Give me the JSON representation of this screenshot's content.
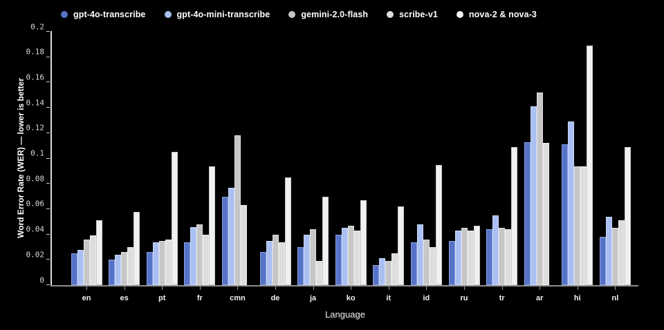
{
  "chart_data": {
    "type": "bar",
    "title": "",
    "xlabel": "Language",
    "ylabel": "Word Error Rate (WER) — lower is better",
    "ylim": [
      0,
      0.2
    ],
    "ytick_step": 0.02,
    "grid": false,
    "legend_position": "top",
    "background": "#000000",
    "categories": [
      "en",
      "es",
      "pt",
      "fr",
      "cmn",
      "de",
      "ja",
      "ko",
      "it",
      "id",
      "ru",
      "tr",
      "ar",
      "hi",
      "nl"
    ],
    "series": [
      {
        "name": "gpt-4o-transcribe",
        "color": "#5673C8",
        "edge_color": "#8AA2DF",
        "values": [
          0.025,
          0.02,
          0.026,
          0.034,
          0.07,
          0.026,
          0.03,
          0.04,
          0.016,
          0.034,
          0.035,
          0.044,
          0.113,
          0.111,
          0.038
        ]
      },
      {
        "name": "gpt-4o-mini-transcribe",
        "color": "#AABFF2",
        "edge_color": "#CBD9F9",
        "values": [
          0.028,
          0.024,
          0.034,
          0.046,
          0.077,
          0.035,
          0.04,
          0.045,
          0.021,
          0.048,
          0.043,
          0.055,
          0.141,
          0.129,
          0.054
        ]
      },
      {
        "name": "gemini-2.0-flash",
        "color": "#C6C6C6",
        "edge_color": "#DFDFDF",
        "values": [
          0.036,
          0.026,
          0.035,
          0.048,
          0.118,
          0.04,
          0.044,
          0.047,
          0.019,
          0.036,
          0.045,
          0.045,
          0.152,
          0.094,
          0.045
        ]
      },
      {
        "name": "scribe-v1",
        "color": "#DDDDDD",
        "edge_color": "#EFEFEF",
        "values": [
          0.039,
          0.03,
          0.036,
          0.04,
          0.063,
          0.034,
          0.019,
          0.043,
          0.025,
          0.03,
          0.043,
          0.044,
          0.112,
          0.094,
          0.051
        ]
      },
      {
        "name": "nova-2 & nova-3",
        "color": "#F1F1F1",
        "edge_color": "#C9C9C9",
        "values": [
          0.051,
          0.058,
          0.105,
          0.094,
          null,
          0.085,
          0.07,
          0.067,
          0.062,
          0.095,
          0.047,
          0.109,
          null,
          0.189,
          0.109
        ]
      }
    ]
  }
}
